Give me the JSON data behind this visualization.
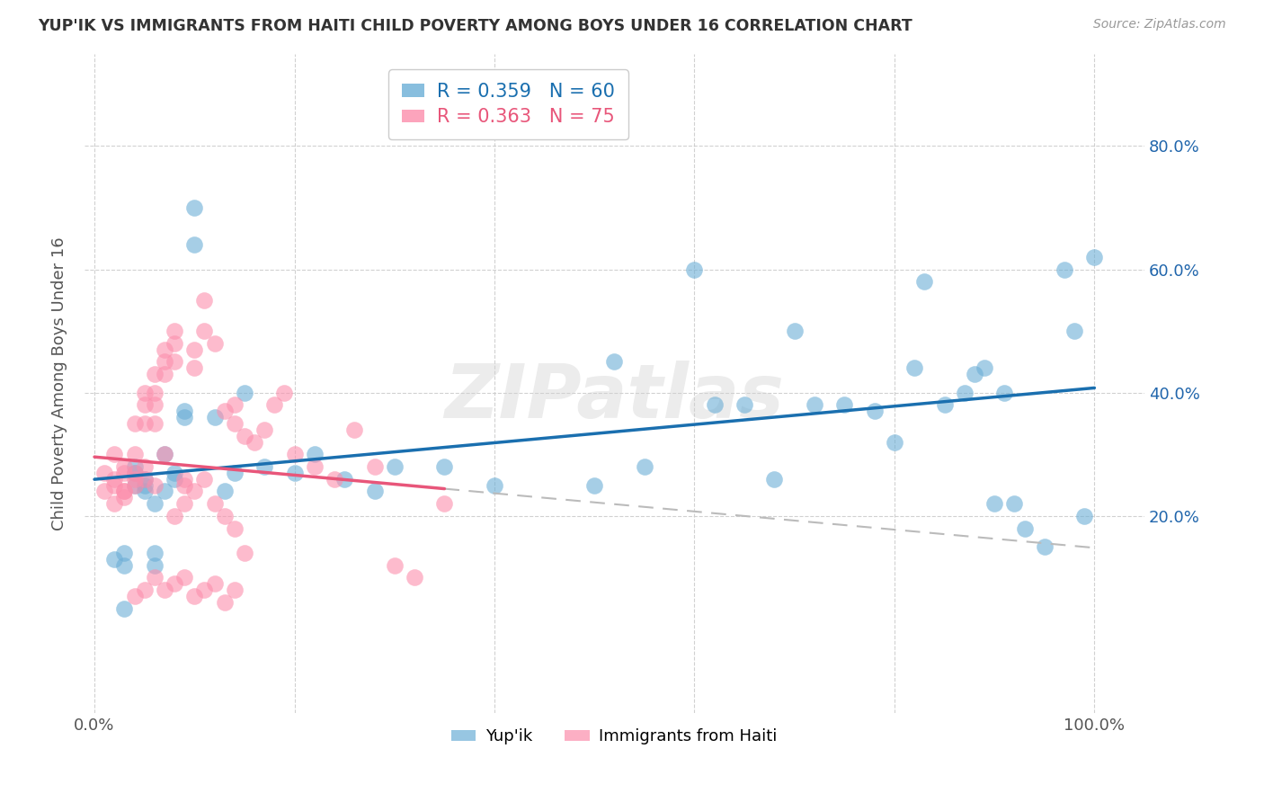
{
  "title": "YUP'IK VS IMMIGRANTS FROM HAITI CHILD POVERTY AMONG BOYS UNDER 16 CORRELATION CHART",
  "source": "Source: ZipAtlas.com",
  "ylabel": "Child Poverty Among Boys Under 16",
  "watermark": "ZIPatlas",
  "legend_1_label": "R = 0.359   N = 60",
  "legend_2_label": "R = 0.363   N = 75",
  "series1_color": "#6baed6",
  "series2_color": "#fc8eac",
  "trendline1_color": "#1a6faf",
  "trendline2_color": "#e8567a",
  "trendline_dashed_color": "#bbbbbb",
  "background_color": "#ffffff",
  "grid_color": "#cccccc",
  "xtick_labels": [
    "0.0%",
    "",
    "",
    "",
    "",
    "100.0%"
  ],
  "ytick_labels": [
    "20.0%",
    "40.0%",
    "60.0%",
    "80.0%"
  ],
  "ytick_positions": [
    0.2,
    0.4,
    0.6,
    0.8
  ],
  "series1_x": [
    0.02,
    0.03,
    0.03,
    0.04,
    0.04,
    0.05,
    0.05,
    0.06,
    0.06,
    0.07,
    0.07,
    0.08,
    0.09,
    0.1,
    0.1,
    0.12,
    0.13,
    0.14,
    0.15,
    0.17,
    0.2,
    0.22,
    0.25,
    0.28,
    0.3,
    0.35,
    0.4,
    0.5,
    0.52,
    0.55,
    0.6,
    0.62,
    0.65,
    0.68,
    0.7,
    0.72,
    0.75,
    0.78,
    0.8,
    0.82,
    0.83,
    0.85,
    0.87,
    0.88,
    0.89,
    0.9,
    0.91,
    0.92,
    0.93,
    0.95,
    0.97,
    0.98,
    0.99,
    1.0,
    0.04,
    0.05,
    0.06,
    0.03,
    0.08,
    0.09
  ],
  "series1_y": [
    0.13,
    0.14,
    0.05,
    0.25,
    0.28,
    0.26,
    0.24,
    0.22,
    0.14,
    0.3,
    0.24,
    0.27,
    0.37,
    0.7,
    0.64,
    0.36,
    0.24,
    0.27,
    0.4,
    0.28,
    0.27,
    0.3,
    0.26,
    0.24,
    0.28,
    0.28,
    0.25,
    0.25,
    0.45,
    0.28,
    0.6,
    0.38,
    0.38,
    0.26,
    0.5,
    0.38,
    0.38,
    0.37,
    0.32,
    0.44,
    0.58,
    0.38,
    0.4,
    0.43,
    0.44,
    0.22,
    0.4,
    0.22,
    0.18,
    0.15,
    0.6,
    0.5,
    0.2,
    0.62,
    0.27,
    0.25,
    0.12,
    0.12,
    0.26,
    0.36
  ],
  "series2_x": [
    0.01,
    0.01,
    0.02,
    0.02,
    0.02,
    0.03,
    0.03,
    0.03,
    0.03,
    0.04,
    0.04,
    0.04,
    0.04,
    0.05,
    0.05,
    0.05,
    0.05,
    0.06,
    0.06,
    0.06,
    0.06,
    0.07,
    0.07,
    0.07,
    0.08,
    0.08,
    0.08,
    0.09,
    0.09,
    0.1,
    0.1,
    0.11,
    0.11,
    0.12,
    0.13,
    0.14,
    0.14,
    0.15,
    0.16,
    0.17,
    0.18,
    0.19,
    0.2,
    0.22,
    0.24,
    0.26,
    0.28,
    0.3,
    0.32,
    0.35,
    0.02,
    0.03,
    0.04,
    0.05,
    0.06,
    0.07,
    0.08,
    0.09,
    0.1,
    0.11,
    0.12,
    0.13,
    0.14,
    0.15,
    0.04,
    0.05,
    0.06,
    0.07,
    0.08,
    0.09,
    0.1,
    0.11,
    0.12,
    0.13,
    0.14
  ],
  "series2_y": [
    0.27,
    0.24,
    0.3,
    0.26,
    0.25,
    0.28,
    0.27,
    0.24,
    0.23,
    0.35,
    0.3,
    0.27,
    0.25,
    0.4,
    0.38,
    0.35,
    0.26,
    0.43,
    0.4,
    0.38,
    0.35,
    0.47,
    0.45,
    0.43,
    0.5,
    0.48,
    0.45,
    0.26,
    0.25,
    0.47,
    0.44,
    0.55,
    0.5,
    0.48,
    0.37,
    0.38,
    0.35,
    0.33,
    0.32,
    0.34,
    0.38,
    0.4,
    0.3,
    0.28,
    0.26,
    0.34,
    0.28,
    0.12,
    0.1,
    0.22,
    0.22,
    0.24,
    0.26,
    0.28,
    0.25,
    0.3,
    0.2,
    0.22,
    0.24,
    0.26,
    0.22,
    0.2,
    0.18,
    0.14,
    0.07,
    0.08,
    0.1,
    0.08,
    0.09,
    0.1,
    0.07,
    0.08,
    0.09,
    0.06,
    0.08
  ]
}
